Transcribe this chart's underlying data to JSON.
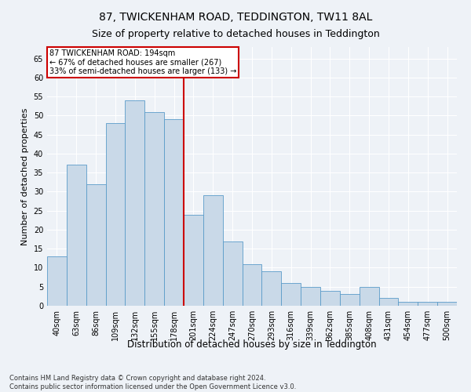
{
  "title": "87, TWICKENHAM ROAD, TEDDINGTON, TW11 8AL",
  "subtitle": "Size of property relative to detached houses in Teddington",
  "xlabel": "Distribution of detached houses by size in Teddington",
  "ylabel": "Number of detached properties",
  "footnote1": "Contains HM Land Registry data © Crown copyright and database right 2024.",
  "footnote2": "Contains public sector information licensed under the Open Government Licence v3.0.",
  "bar_labels": [
    "40sqm",
    "63sqm",
    "86sqm",
    "109sqm",
    "132sqm",
    "155sqm",
    "178sqm",
    "201sqm",
    "224sqm",
    "247sqm",
    "270sqm",
    "293sqm",
    "316sqm",
    "339sqm",
    "362sqm",
    "385sqm",
    "408sqm",
    "431sqm",
    "454sqm",
    "477sqm",
    "500sqm"
  ],
  "bar_values": [
    13,
    37,
    32,
    48,
    54,
    51,
    49,
    24,
    29,
    17,
    11,
    9,
    6,
    5,
    4,
    3,
    5,
    2,
    1,
    1,
    1
  ],
  "bar_color": "#c9d9e8",
  "bar_edge_color": "#5a9bc9",
  "property_line_index": 7,
  "annotation_title": "87 TWICKENHAM ROAD: 194sqm",
  "annotation_line1": "← 67% of detached houses are smaller (267)",
  "annotation_line2": "33% of semi-detached houses are larger (133) →",
  "annotation_box_color": "#ffffff",
  "annotation_box_edge": "#cc0000",
  "vline_color": "#cc0000",
  "ylim": [
    0,
    68
  ],
  "background_color": "#eef2f7",
  "grid_color": "#ffffff",
  "title_fontsize": 10,
  "subtitle_fontsize": 9,
  "tick_fontsize": 7,
  "ylabel_fontsize": 8,
  "xlabel_fontsize": 8.5,
  "footnote_fontsize": 6
}
